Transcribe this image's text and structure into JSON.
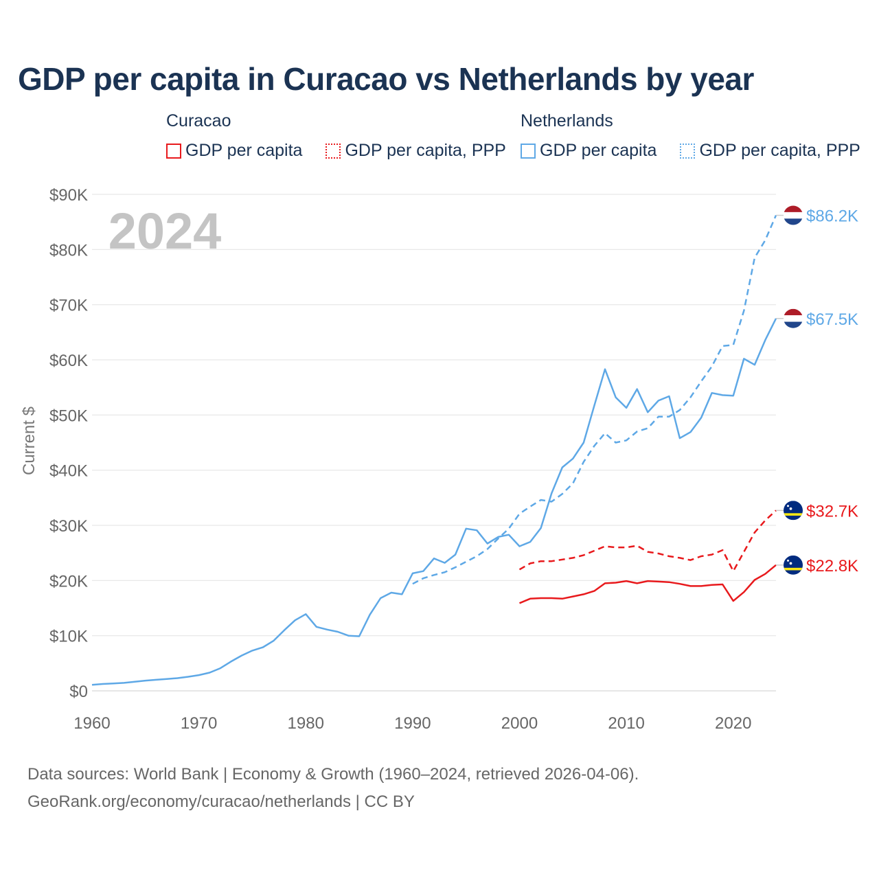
{
  "title": "GDP per capita in Curacao vs Netherlands by year",
  "legend": [
    {
      "country": "Curacao",
      "items": [
        {
          "label": "GDP per capita",
          "style": "solid",
          "color": "#e8191c"
        },
        {
          "label": "GDP per capita, PPP",
          "style": "dotted",
          "color": "#e8191c"
        }
      ]
    },
    {
      "country": "Netherlands",
      "items": [
        {
          "label": "GDP per capita",
          "style": "solid",
          "color": "#5ea8e6"
        },
        {
          "label": "GDP per capita, PPP",
          "style": "dotted",
          "color": "#5ea8e6"
        }
      ]
    }
  ],
  "year_label": "2024",
  "footer": {
    "line1": "Data sources: World Bank | Economy & Growth (1960–2024, retrieved 2026-04-06).",
    "line2": "GeoRank.org/economy/curacao/netherlands | CC BY"
  },
  "chart_data": {
    "type": "line",
    "title": "GDP per capita in Curacao vs Netherlands by year",
    "xlabel": "",
    "ylabel": "Current $",
    "xlim": [
      1960,
      2024
    ],
    "ylim": [
      0,
      90000
    ],
    "x_ticks": [
      1960,
      1970,
      1980,
      1990,
      2000,
      2010,
      2020
    ],
    "x_tick_labels": [
      "1960",
      "1970",
      "1980",
      "1990",
      "2000",
      "2010",
      "2020"
    ],
    "y_ticks": [
      0,
      10000,
      20000,
      30000,
      40000,
      50000,
      60000,
      70000,
      80000,
      90000
    ],
    "y_tick_labels": [
      "$0",
      "$10K",
      "$20K",
      "$30K",
      "$40K",
      "$50K",
      "$60K",
      "$70K",
      "$80K",
      "$90K"
    ],
    "grid": true,
    "series": [
      {
        "name": "Netherlands GDP per capita, PPP",
        "country": "Netherlands",
        "color": "#5ea8e6",
        "dash": "dashed",
        "end_label": "$86.2K",
        "start_year": 1990,
        "values": [
          19400,
          20400,
          21000,
          21500,
          22400,
          23400,
          24400,
          25700,
          27600,
          29400,
          32100,
          33400,
          34600,
          34300,
          35700,
          37600,
          41500,
          44400,
          46700,
          45000,
          45400,
          47000,
          47600,
          49700,
          49700,
          50900,
          53200,
          56100,
          58800,
          62500,
          62700,
          68900,
          78500,
          81700,
          86200
        ]
      },
      {
        "name": "Netherlands GDP per capita",
        "country": "Netherlands",
        "color": "#5ea8e6",
        "dash": "solid",
        "end_label": "$67.5K",
        "start_year": 1960,
        "values": [
          1100,
          1250,
          1350,
          1450,
          1650,
          1850,
          2000,
          2150,
          2300,
          2550,
          2850,
          3300,
          4100,
          5300,
          6400,
          7300,
          7900,
          9100,
          11000,
          12800,
          13900,
          11600,
          11100,
          10700,
          10000,
          9900,
          13800,
          16800,
          17800,
          17500,
          21300,
          21700,
          24000,
          23200,
          24700,
          29400,
          29100,
          26700,
          27900,
          28300,
          26200,
          27000,
          29500,
          35800,
          40500,
          42100,
          45000,
          51700,
          58300,
          53200,
          51300,
          54700,
          50500,
          52600,
          53400,
          45800,
          46900,
          49500,
          54000,
          53600,
          53500,
          60200,
          59100,
          63600,
          67500
        ]
      },
      {
        "name": "Curacao GDP per capita, PPP",
        "country": "Curacao",
        "color": "#e8191c",
        "dash": "dashed",
        "end_label": "$32.7K",
        "start_year": 2000,
        "values": [
          22000,
          23100,
          23500,
          23500,
          23800,
          24100,
          24600,
          25400,
          26200,
          26000,
          26000,
          26300,
          25200,
          24900,
          24400,
          24100,
          23700,
          24400,
          24700,
          25500,
          21700,
          25200,
          28700,
          30900,
          32700
        ]
      },
      {
        "name": "Curacao GDP per capita",
        "country": "Curacao",
        "color": "#e8191c",
        "dash": "solid",
        "end_label": "$22.8K",
        "start_year": 2000,
        "values": [
          15900,
          16700,
          16800,
          16800,
          16700,
          17100,
          17500,
          18100,
          19500,
          19600,
          19900,
          19500,
          19900,
          19800,
          19700,
          19400,
          19000,
          19000,
          19200,
          19300,
          16300,
          17900,
          20100,
          21200,
          22800
        ]
      }
    ]
  }
}
